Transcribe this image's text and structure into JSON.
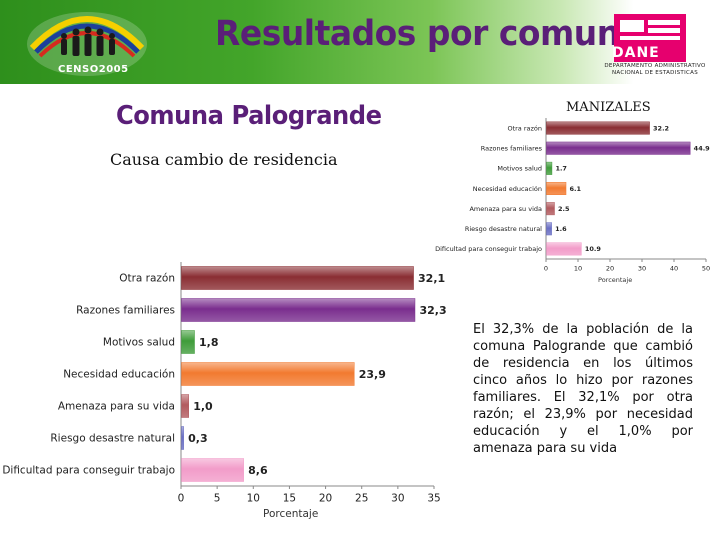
{
  "header": {
    "title": "Resultados por comuna",
    "census_logo_text": "CENSO2005",
    "dane_logo_text": "DANE",
    "dane_subtitle": "DEPARTAMENTO ADMINISTRATIVO NACIONAL DE ESTADISTICAS",
    "colors": {
      "title": "#5a1f78",
      "header_green": "#43a52a",
      "dane_pink": "#e6006e"
    }
  },
  "page": {
    "comuna_title": "Comuna Palogrande",
    "subtitle": "Causa cambio de residencia",
    "description": "El 32,3% de la población de la comuna Palogrande que cambió de residencia en los últimos cinco años lo hizo por razones familiares. El 32,1% por otra razón; el 23,9% por necesidad educación y el 1,0% por amenaza para su vida"
  },
  "chart_data": [
    {
      "type": "bar",
      "orientation": "horizontal",
      "title": "MANIZALES",
      "categories": [
        "Otra razón",
        "Razones familiares",
        "Motivos salud",
        "Necesidad educación",
        "Amenaza para su vida",
        "Riesgo desastre natural",
        "Dificultad para conseguir trabajo"
      ],
      "values": [
        32.2,
        44.9,
        1.7,
        6.1,
        2.5,
        1.6,
        10.9
      ],
      "value_labels": [
        "32.2",
        "44.9",
        "1.7",
        "6.1",
        "2.5",
        "1.6",
        "10.9"
      ],
      "colors": [
        "#8a2e33",
        "#7a2e8e",
        "#3f9c3a",
        "#f27a30",
        "#b25a5e",
        "#6a6fc4",
        "#f29cc9"
      ],
      "xlabel": "Porcentaje",
      "xlim": [
        0,
        50
      ],
      "xticks": [
        "0",
        "10",
        "20",
        "30",
        "40",
        "50"
      ],
      "grid": false
    },
    {
      "type": "bar",
      "orientation": "horizontal",
      "title": "",
      "categories": [
        "Otra razón",
        "Razones familiares",
        "Motivos salud",
        "Necesidad educación",
        "Amenaza para su vida",
        "Riesgo desastre natural",
        "Dificultad para conseguir trabajo"
      ],
      "values": [
        32.1,
        32.3,
        1.8,
        23.9,
        1.0,
        0.3,
        8.6
      ],
      "value_labels": [
        "32,1",
        "32,3",
        "1,8",
        "23,9",
        "1,0",
        "0,3",
        "8,6"
      ],
      "colors": [
        "#8a2e33",
        "#7a2e8e",
        "#3f9c3a",
        "#f27a30",
        "#b25a5e",
        "#6a6fc4",
        "#f29cc9"
      ],
      "xlabel": "Porcentaje",
      "xlim": [
        0,
        35
      ],
      "xticks": [
        "0",
        "5",
        "10",
        "15",
        "20",
        "25",
        "30",
        "35"
      ],
      "grid": false
    }
  ]
}
